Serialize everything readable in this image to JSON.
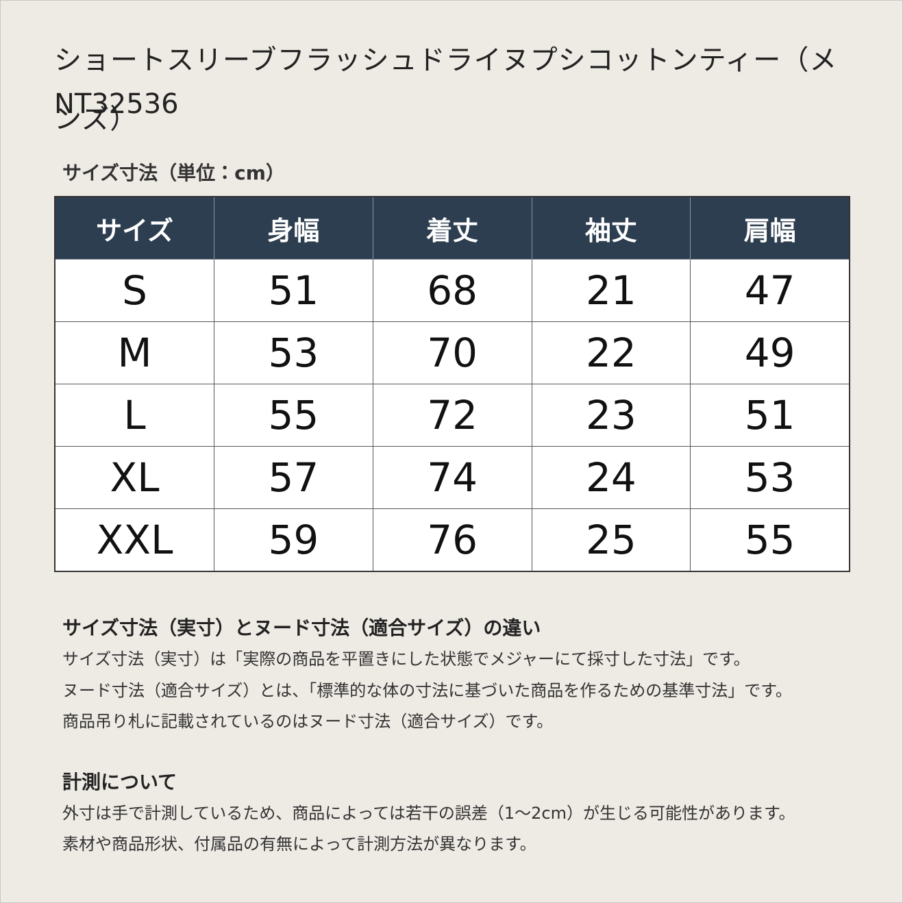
{
  "header": {
    "title": "ショートスリーブフラッシュドライヌプシコットンティー（メンズ）",
    "product_code": "NT32536"
  },
  "table": {
    "caption": "サイズ寸法（単位：cm）",
    "columns": [
      "サイズ",
      "身幅",
      "着丈",
      "袖丈",
      "肩幅"
    ],
    "rows": [
      [
        "S",
        51,
        68,
        21,
        47
      ],
      [
        "M",
        53,
        70,
        22,
        49
      ],
      [
        "L",
        55,
        72,
        23,
        51
      ],
      [
        "XL",
        57,
        74,
        24,
        53
      ],
      [
        "XXL",
        59,
        76,
        25,
        55
      ]
    ]
  },
  "notes": [
    {
      "heading": "サイズ寸法（実寸）とヌード寸法（適合サイズ）の違い",
      "lines": [
        "サイズ寸法（実寸）は「実際の商品を平置きにした状態でメジャーにて採寸した寸法」です。",
        "ヌード寸法（適合サイズ）とは、「標準的な体の寸法に基づいた商品を作るための基準寸法」です。",
        "商品吊り札に記載されているのはヌード寸法（適合サイズ）です。"
      ]
    },
    {
      "heading": "計測について",
      "lines": [
        "外寸は手で計測しているため、商品によっては若干の誤差（1～2cm）が生じる可能性があります。",
        "素材や商品形状、付属品の有無によって計測方法が異なります。"
      ]
    }
  ]
}
